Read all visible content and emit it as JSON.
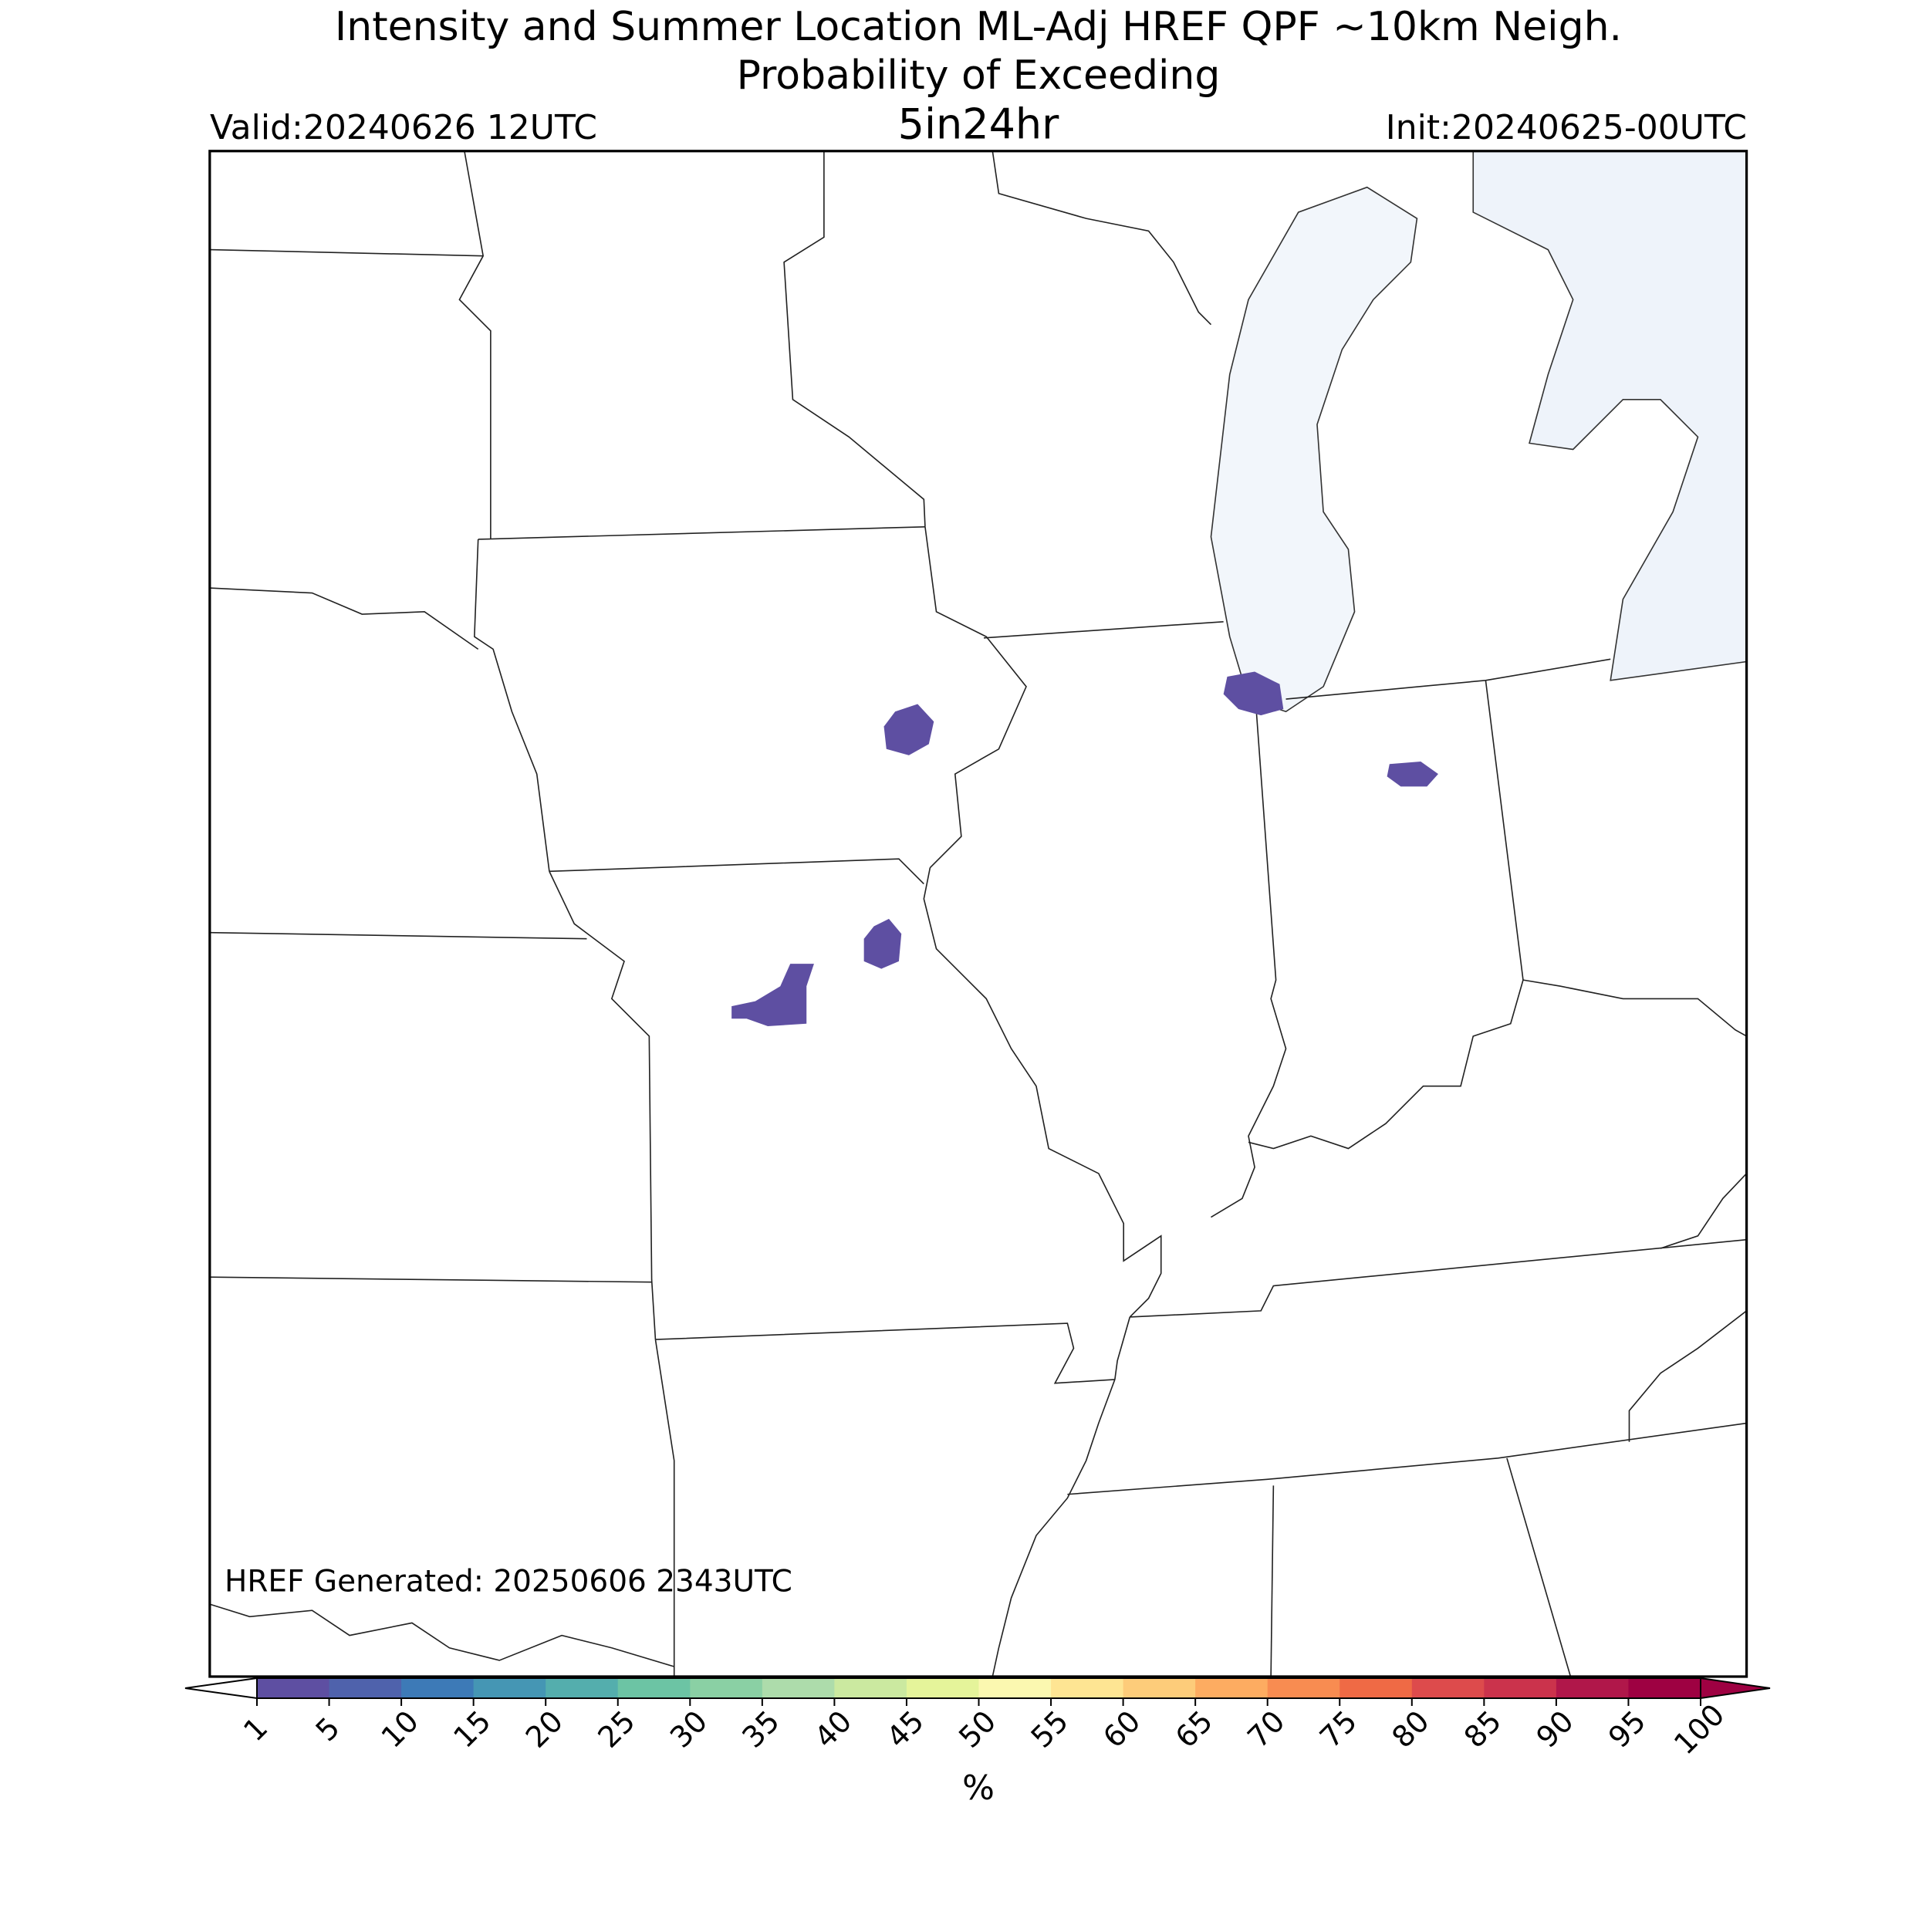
{
  "header": {
    "title_line1": "Intensity and Summer Location ML-Adj HREF QPF ~10km Neigh.",
    "title_line2": "Probability of Exceeding",
    "threshold": "5in24hr",
    "valid": "Valid:20240626 12UTC",
    "init": "Init:20240625-00UTC"
  },
  "map": {
    "generated": "HREF Generated: 20250606 2343UTC",
    "probability_areas": [
      1,
      1,
      1,
      1,
      1
    ]
  },
  "colorbar": {
    "levels": [
      1,
      5,
      10,
      15,
      20,
      25,
      30,
      35,
      40,
      45,
      50,
      55,
      60,
      65,
      70,
      75,
      80,
      85,
      90,
      95,
      100
    ],
    "colors": [
      "#5e4fa2",
      "#4f62ac",
      "#3d7ab7",
      "#4596b4",
      "#54aead",
      "#6cc4a4",
      "#8ad0a4",
      "#addcab",
      "#cbe9a0",
      "#e5f49a",
      "#fbf8b0",
      "#fee593",
      "#fdcc7a",
      "#fdac61",
      "#f88c51",
      "#ef6a45",
      "#dd4b4c",
      "#cb334c",
      "#b0174a",
      "#9e0142"
    ],
    "under_color": "#ffffff",
    "over_color": "#9e0142",
    "label": "%"
  }
}
